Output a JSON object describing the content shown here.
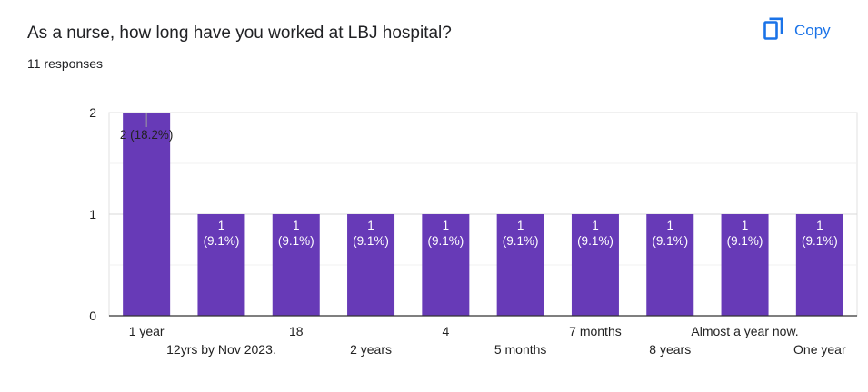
{
  "title": "As a nurse, how long have you worked at LBJ hospital?",
  "responses": "11 responses",
  "copy_button": {
    "label": "Copy",
    "icon": "copy-icon"
  },
  "colors": {
    "bar": "#673ab7",
    "accent": "#1a73e8"
  },
  "chart_data": {
    "type": "bar",
    "categories": [
      "1 year",
      "12yrs by Nov 2023.",
      "18",
      "2 years",
      "4",
      "5 months",
      "7 months",
      "8 years",
      "Almost a year now.",
      "One year"
    ],
    "values": [
      2,
      1,
      1,
      1,
      1,
      1,
      1,
      1,
      1,
      1
    ],
    "data_labels": [
      [
        "2",
        "(18.2%)"
      ],
      [
        "1",
        "(9.1%)"
      ],
      [
        "1",
        "(9.1%)"
      ],
      [
        "1",
        "(9.1%)"
      ],
      [
        "1",
        "(9.1%)"
      ],
      [
        "1",
        "(9.1%)"
      ],
      [
        "1",
        "(9.1%)"
      ],
      [
        "1",
        "(9.1%)"
      ],
      [
        "1",
        "(9.1%)"
      ],
      [
        "1",
        "(9.1%)"
      ]
    ],
    "ylim": [
      0,
      2
    ],
    "yticks": [
      "0",
      "1",
      "2"
    ],
    "grid": true,
    "xlabel": "",
    "ylabel": ""
  }
}
